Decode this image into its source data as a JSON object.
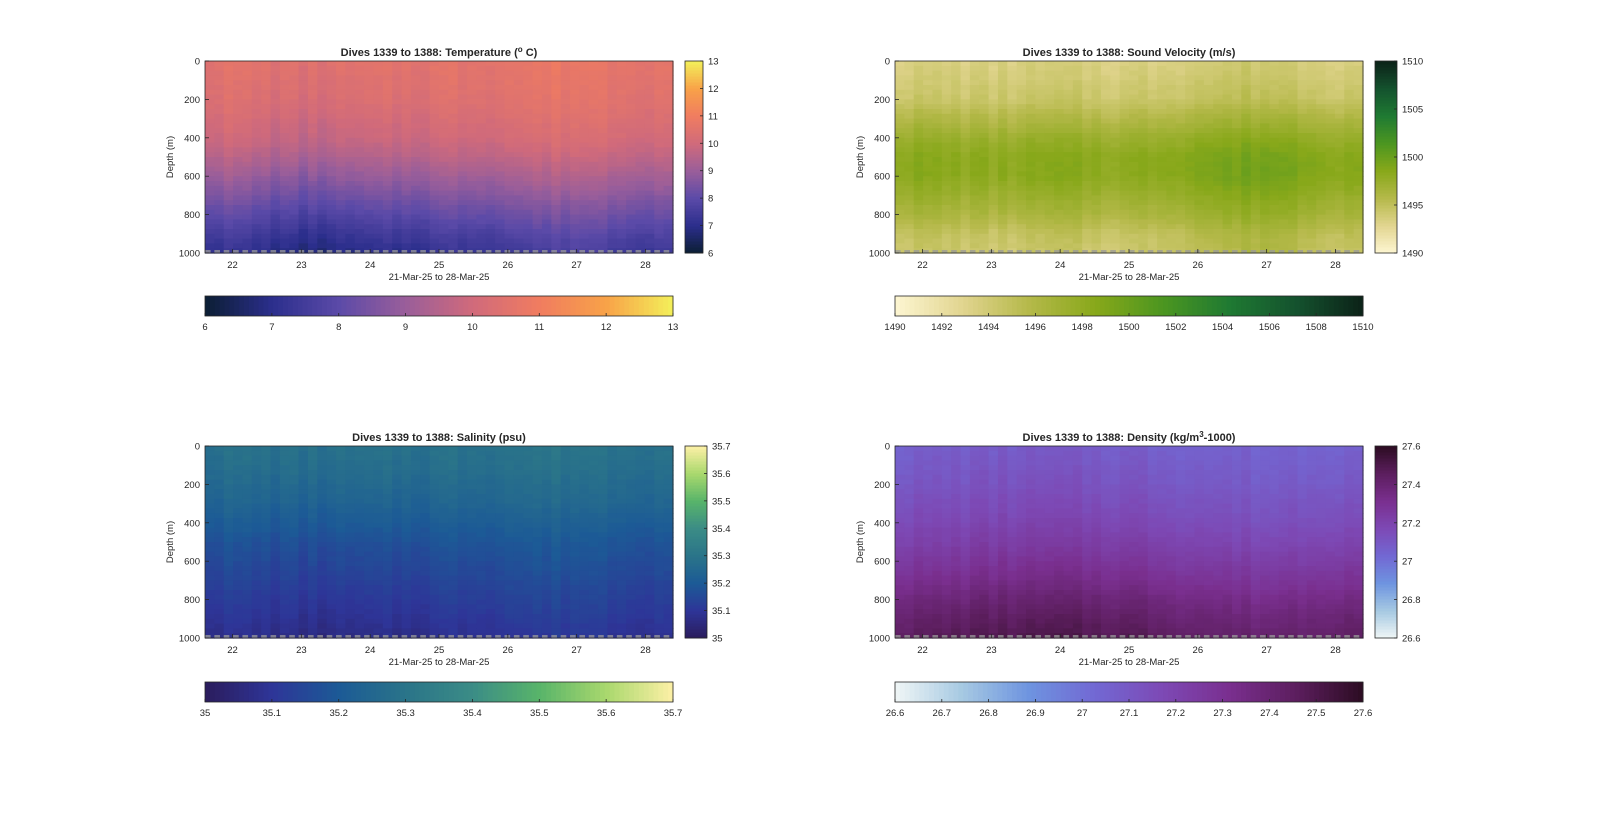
{
  "figure": {
    "panels": [
      {
        "id": "temperature",
        "title": "Dives 1339 to 1388: Temperature (",
        "title_sup": "o",
        "title_after": " C)",
        "cmap": [
          "#0b1e33",
          "#2b2e8c",
          "#5b4aa8",
          "#9a5e9a",
          "#d06a7b",
          "#f07c60",
          "#f8a248",
          "#f3f05a"
        ]
      },
      {
        "id": "sound-velocity",
        "title": "Dives 1339 to 1388: Sound Velocity (m/s)",
        "title_sup": "",
        "title_after": "",
        "cmap": [
          "#fdf6d2",
          "#e2d590",
          "#b5b94a",
          "#88a81a",
          "#4c9620",
          "#1f7a32",
          "#14522e",
          "#0c2218"
        ]
      },
      {
        "id": "salinity",
        "title": "Dives 1339 to 1388: Salinity (psu)",
        "title_sup": "",
        "title_after": "",
        "cmap": [
          "#2b1c5c",
          "#2e3598",
          "#1c5a96",
          "#2a7489",
          "#3b8c86",
          "#58b46a",
          "#a9d86d",
          "#fdf0a6"
        ]
      },
      {
        "id": "density",
        "title": "Dives 1339 to 1388: Density (kg/m",
        "title_sup": "3",
        "title_after": "-1000)",
        "cmap": [
          "#f0f6f6",
          "#a6c9e2",
          "#6e94e0",
          "#7268d3",
          "#7d49b5",
          "#7a2f8f",
          "#5c1e5e",
          "#2c0c22"
        ]
      }
    ]
  },
  "chart_data": [
    {
      "type": "heatmap",
      "title": "Dives 1339 to 1388: Temperature (o C)",
      "xlabel": "21-Mar-25 to 28-Mar-25",
      "ylabel": "Depth (m)",
      "x_ticks": [
        "22",
        "23",
        "24",
        "25",
        "26",
        "27",
        "28"
      ],
      "x_tick_values": [
        22,
        23,
        24,
        25,
        26,
        27,
        28
      ],
      "xlim": [
        21.6,
        28.4
      ],
      "ylim": [
        0,
        1000
      ],
      "y_reversed": true,
      "y_ticks": [
        "0",
        "200",
        "400",
        "600",
        "800",
        "1000"
      ],
      "y_tick_values": [
        0,
        200,
        400,
        600,
        800,
        1000
      ],
      "clim": [
        6,
        13
      ],
      "colorbar_right_ticks": [
        "6",
        "7",
        "8",
        "9",
        "10",
        "11",
        "12",
        "13"
      ],
      "colorbar_bottom_ticks": [
        "6",
        "7",
        "8",
        "9",
        "10",
        "11",
        "12",
        "13"
      ],
      "dives": 50,
      "profile_depth": [
        0,
        100,
        200,
        300,
        400,
        500,
        600,
        700,
        800,
        900,
        1000
      ],
      "profile_value": [
        10.6,
        10.5,
        10.4,
        10.2,
        10.0,
        9.6,
        9.1,
        8.6,
        8.1,
        7.6,
        7.2
      ],
      "day_offsets": [
        [
          22,
          0.0
        ],
        [
          23,
          -0.5
        ],
        [
          24,
          -0.3
        ],
        [
          25,
          0.0
        ],
        [
          26,
          0.2
        ],
        [
          27,
          0.5
        ],
        [
          28,
          0.2
        ]
      ]
    },
    {
      "type": "heatmap",
      "title": "Dives 1339 to 1388: Sound Velocity (m/s)",
      "xlabel": "21-Mar-25 to 28-Mar-25",
      "ylabel": "Depth (m)",
      "x_ticks": [
        "22",
        "23",
        "24",
        "25",
        "26",
        "27",
        "28"
      ],
      "x_tick_values": [
        22,
        23,
        24,
        25,
        26,
        27,
        28
      ],
      "xlim": [
        21.6,
        28.4
      ],
      "ylim": [
        0,
        1000
      ],
      "y_reversed": true,
      "y_ticks": [
        "0",
        "200",
        "400",
        "600",
        "800",
        "1000"
      ],
      "y_tick_values": [
        0,
        200,
        400,
        600,
        800,
        1000
      ],
      "clim": [
        1490,
        1510
      ],
      "colorbar_right_ticks": [
        "1490",
        "1495",
        "1500",
        "1505",
        "1510"
      ],
      "colorbar_bottom_ticks": [
        "1490",
        "1492",
        "1494",
        "1496",
        "1498",
        "1500",
        "1502",
        "1504",
        "1506",
        "1508",
        "1510"
      ],
      "dives": 50,
      "profile_depth": [
        0,
        100,
        200,
        300,
        400,
        500,
        600,
        700,
        800,
        900,
        1000
      ],
      "profile_value": [
        1493.5,
        1494.0,
        1494.5,
        1496.0,
        1497.5,
        1498.5,
        1498.5,
        1497.5,
        1496.5,
        1495.0,
        1494.5
      ],
      "day_offsets": [
        [
          22,
          0.0
        ],
        [
          23,
          -0.5
        ],
        [
          24,
          0.0
        ],
        [
          25,
          -0.5
        ],
        [
          26,
          0.8
        ],
        [
          27,
          1.6
        ],
        [
          28,
          0.3
        ]
      ]
    },
    {
      "type": "heatmap",
      "title": "Dives 1339 to 1388: Salinity (psu)",
      "xlabel": "21-Mar-25 to 28-Mar-25",
      "ylabel": "Depth (m)",
      "x_ticks": [
        "22",
        "23",
        "24",
        "25",
        "26",
        "27",
        "28"
      ],
      "x_tick_values": [
        22,
        23,
        24,
        25,
        26,
        27,
        28
      ],
      "xlim": [
        21.6,
        28.4
      ],
      "ylim": [
        0,
        1000
      ],
      "y_reversed": true,
      "y_ticks": [
        "0",
        "200",
        "400",
        "600",
        "800",
        "1000"
      ],
      "y_tick_values": [
        0,
        200,
        400,
        600,
        800,
        1000
      ],
      "clim": [
        35,
        35.7
      ],
      "colorbar_right_ticks": [
        "35",
        "35.1",
        "35.2",
        "35.3",
        "35.4",
        "35.5",
        "35.6",
        "35.7"
      ],
      "colorbar_bottom_ticks": [
        "35",
        "35.1",
        "35.2",
        "35.3",
        "35.4",
        "35.5",
        "35.6",
        "35.7"
      ],
      "dives": 50,
      "profile_depth": [
        0,
        100,
        200,
        300,
        400,
        500,
        600,
        700,
        800,
        900,
        1000
      ],
      "profile_value": [
        35.29,
        35.28,
        35.26,
        35.24,
        35.21,
        35.18,
        35.16,
        35.14,
        35.12,
        35.1,
        35.08
      ],
      "day_offsets": [
        [
          22,
          0.0
        ],
        [
          23,
          -0.02
        ],
        [
          24,
          -0.02
        ],
        [
          25,
          0.0
        ],
        [
          26,
          0.02
        ],
        [
          27,
          0.03
        ],
        [
          28,
          0.01
        ]
      ]
    },
    {
      "type": "heatmap",
      "title": "Dives 1339 to 1388: Density (kg/m3-1000)",
      "xlabel": "21-Mar-25 to 28-Mar-25",
      "ylabel": "Depth (m)",
      "x_ticks": [
        "22",
        "23",
        "24",
        "25",
        "26",
        "27",
        "28"
      ],
      "x_tick_values": [
        22,
        23,
        24,
        25,
        26,
        27,
        28
      ],
      "xlim": [
        21.6,
        28.4
      ],
      "ylim": [
        0,
        1000
      ],
      "y_reversed": true,
      "y_ticks": [
        "0",
        "200",
        "400",
        "600",
        "800",
        "1000"
      ],
      "y_tick_values": [
        0,
        200,
        400,
        600,
        800,
        1000
      ],
      "clim": [
        26.6,
        27.6
      ],
      "colorbar_right_ticks": [
        "26.6",
        "26.8",
        "27",
        "27.2",
        "27.4",
        "27.6"
      ],
      "colorbar_bottom_ticks": [
        "26.6",
        "26.7",
        "26.8",
        "26.9",
        "27",
        "27.1",
        "27.2",
        "27.3",
        "27.4",
        "27.5",
        "27.6"
      ],
      "dives": 50,
      "profile_depth": [
        0,
        100,
        200,
        300,
        400,
        500,
        600,
        700,
        800,
        900,
        1000
      ],
      "profile_value": [
        27.07,
        27.09,
        27.11,
        27.14,
        27.17,
        27.21,
        27.26,
        27.31,
        27.37,
        27.42,
        27.46
      ],
      "day_offsets": [
        [
          22,
          0.0
        ],
        [
          23,
          0.03
        ],
        [
          24,
          0.04
        ],
        [
          25,
          0.02
        ],
        [
          26,
          -0.02
        ],
        [
          27,
          -0.05
        ],
        [
          28,
          -0.01
        ]
      ]
    }
  ]
}
